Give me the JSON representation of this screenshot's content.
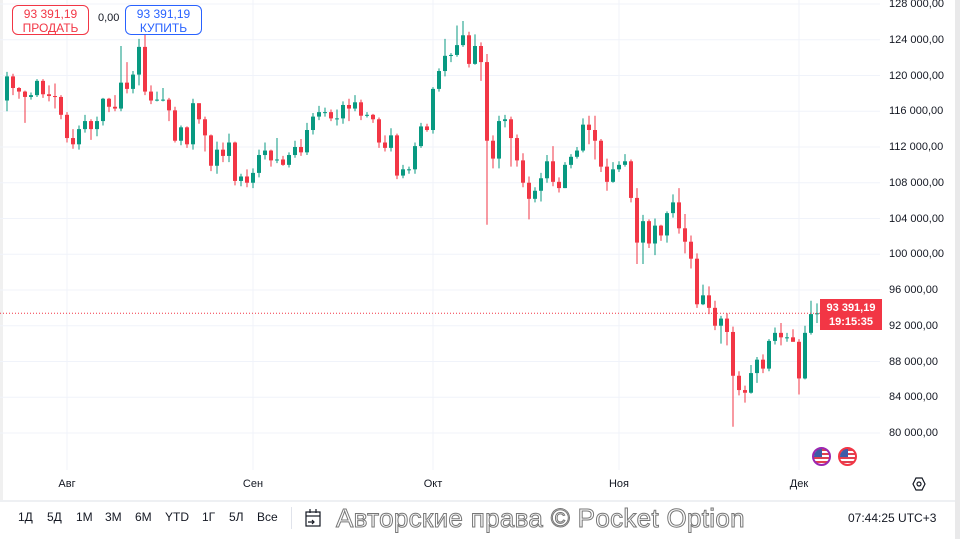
{
  "trade": {
    "sell_price": "93 391,19",
    "sell_label": "ПРОДАТЬ",
    "spread": "0,00",
    "buy_price": "93 391,19",
    "buy_label": "КУПИТЬ"
  },
  "current_price": {
    "value": "93 391,19",
    "countdown": "19:15:35",
    "color": "#f23645"
  },
  "range_buttons": [
    "1Д",
    "5Д",
    "1М",
    "3М",
    "6М",
    "YTD",
    "1Г",
    "5Л",
    "Все"
  ],
  "goto_date_icon": "calendar-arrow-icon",
  "settings_icon": "gear-icon",
  "event_icons": [
    "us-flag-icon",
    "us-flag-icon"
  ],
  "clock": "07:44:25 UTC+3",
  "watermark": "Авторские права © Pocket Option",
  "colors": {
    "up": "#089981",
    "down": "#f23645",
    "grid": "#f0f3fa"
  },
  "chart_data": {
    "type": "candlestick",
    "title": "",
    "x_tick_labels": [
      "Авг",
      "Сен",
      "Окт",
      "Ноя",
      "Дек"
    ],
    "y_tick_labels": [
      "128 000,00",
      "124 000,00",
      "120 000,00",
      "116 000,00",
      "112 000,00",
      "108 000,00",
      "104 000,00",
      "100 000,00",
      "96 000,00",
      "92 000,00",
      "88 000,00",
      "84 000,00",
      "80 000,00"
    ],
    "ylim": [
      80000,
      128000
    ],
    "y_axis": "right",
    "grid": true,
    "last_price": 93391.19,
    "candles_columns": [
      "date",
      "open",
      "high",
      "low",
      "close"
    ],
    "candles": [
      [
        "07-22",
        117200,
        120400,
        116000,
        119900
      ],
      [
        "07-23",
        119900,
        120200,
        117800,
        118600
      ],
      [
        "07-24",
        118600,
        118700,
        117400,
        118200
      ],
      [
        "07-25",
        118200,
        118300,
        114700,
        117600
      ],
      [
        "07-26",
        117600,
        118100,
        117300,
        117800
      ],
      [
        "07-27",
        117800,
        119600,
        117600,
        119400
      ],
      [
        "07-28",
        119400,
        119600,
        117500,
        117900
      ],
      [
        "07-29",
        117900,
        118900,
        117100,
        117700
      ],
      [
        "07-30",
        117700,
        119100,
        116300,
        117600
      ],
      [
        "07-31",
        117600,
        117800,
        115100,
        115600
      ],
      [
        "08-01",
        115600,
        115900,
        112500,
        113000
      ],
      [
        "08-02",
        113000,
        114000,
        111800,
        112300
      ],
      [
        "08-03",
        112300,
        114400,
        111700,
        114000
      ],
      [
        "08-04",
        114000,
        115600,
        113600,
        114900
      ],
      [
        "08-05",
        114900,
        115100,
        112800,
        114000
      ],
      [
        "08-06",
        114000,
        115400,
        113200,
        114900
      ],
      [
        "08-07",
        114900,
        117500,
        114400,
        117400
      ],
      [
        "08-08",
        117400,
        117500,
        115900,
        116500
      ],
      [
        "08-09",
        116500,
        117800,
        116000,
        116300
      ],
      [
        "08-10",
        116300,
        123300,
        116000,
        119200
      ],
      [
        "08-11",
        119200,
        121500,
        118000,
        118500
      ],
      [
        "08-12",
        118500,
        120500,
        118000,
        120100
      ],
      [
        "08-13",
        120100,
        124100,
        118900,
        123200
      ],
      [
        "08-14",
        123200,
        124700,
        117800,
        118200
      ],
      [
        "08-15",
        118200,
        118900,
        116800,
        117200
      ],
      [
        "08-16",
        117200,
        118200,
        117100,
        117300
      ],
      [
        "08-17",
        117300,
        118600,
        117100,
        117300
      ],
      [
        "08-18",
        117300,
        117500,
        114900,
        116100
      ],
      [
        "08-19",
        116100,
        116500,
        112500,
        112700
      ],
      [
        "08-20",
        112700,
        114400,
        112200,
        114200
      ],
      [
        "08-21",
        114200,
        114300,
        111900,
        112300
      ],
      [
        "08-22",
        112300,
        117400,
        111700,
        116900
      ],
      [
        "08-23",
        116900,
        116900,
        114600,
        115100
      ],
      [
        "08-24",
        115100,
        115400,
        111500,
        113300
      ],
      [
        "08-25",
        113300,
        113400,
        109300,
        109900
      ],
      [
        "08-26",
        109900,
        112600,
        109000,
        111700
      ],
      [
        "08-27",
        111700,
        112500,
        110300,
        111000
      ],
      [
        "08-28",
        111000,
        113500,
        110300,
        112500
      ],
      [
        "08-29",
        112500,
        112600,
        107700,
        108200
      ],
      [
        "08-30",
        108200,
        109000,
        107600,
        108700
      ],
      [
        "08-31",
        108700,
        109500,
        107500,
        108000
      ],
      [
        "09-01",
        108000,
        109600,
        107400,
        109100
      ],
      [
        "09-02",
        109100,
        111700,
        108600,
        111100
      ],
      [
        "09-03",
        111100,
        112500,
        110600,
        111600
      ],
      [
        "09-04",
        111600,
        111700,
        109800,
        110500
      ],
      [
        "09-05",
        110500,
        113000,
        110200,
        110600
      ],
      [
        "09-06",
        110600,
        111000,
        109900,
        110000
      ],
      [
        "09-07",
        110000,
        111400,
        109700,
        111100
      ],
      [
        "09-08",
        111100,
        112700,
        110800,
        112000
      ],
      [
        "09-09",
        112000,
        112900,
        111000,
        111400
      ],
      [
        "09-10",
        111400,
        114700,
        111100,
        113900
      ],
      [
        "09-11",
        113900,
        115800,
        113400,
        115400
      ],
      [
        "09-12",
        115400,
        116600,
        115000,
        115900
      ],
      [
        "09-13",
        115900,
        116400,
        115400,
        115900
      ],
      [
        "09-14",
        115900,
        116200,
        114900,
        115200
      ],
      [
        "09-15",
        115200,
        116200,
        114400,
        115200
      ],
      [
        "09-16",
        115200,
        117100,
        114600,
        116700
      ],
      [
        "09-17",
        116700,
        117400,
        114900,
        116300
      ],
      [
        "09-18",
        116300,
        117800,
        116000,
        117000
      ],
      [
        "09-19",
        117000,
        117300,
        115000,
        115500
      ],
      [
        "09-20",
        115500,
        115900,
        115300,
        115600
      ],
      [
        "09-21",
        115600,
        115700,
        114700,
        115100
      ],
      [
        "09-22",
        115100,
        115300,
        111900,
        112500
      ],
      [
        "09-23",
        112500,
        113300,
        111500,
        111900
      ],
      [
        "09-24",
        111900,
        114100,
        111500,
        113300
      ],
      [
        "09-25",
        113300,
        113500,
        108400,
        108800
      ],
      [
        "09-26",
        108800,
        110000,
        108500,
        109500
      ],
      [
        "09-27",
        109500,
        109800,
        109000,
        109500
      ],
      [
        "09-28",
        109500,
        112500,
        109000,
        112100
      ],
      [
        "09-29",
        112100,
        114700,
        111900,
        114300
      ],
      [
        "09-30",
        114300,
        114600,
        113700,
        113900
      ],
      [
        "10-01",
        113900,
        118700,
        113500,
        118500
      ],
      [
        "10-02",
        118500,
        120800,
        118200,
        120500
      ],
      [
        "10-03",
        120500,
        124100,
        119900,
        122200
      ],
      [
        "10-04",
        122200,
        122500,
        121500,
        122300
      ],
      [
        "10-05",
        122300,
        125600,
        122100,
        123400
      ],
      [
        "10-06",
        123400,
        126100,
        123200,
        124500
      ],
      [
        "10-07",
        124500,
        124900,
        120900,
        121300
      ],
      [
        "10-08",
        121300,
        124600,
        121200,
        123300
      ],
      [
        "10-09",
        123300,
        123700,
        119400,
        121500
      ],
      [
        "10-10",
        121500,
        122400,
        103300,
        112700
      ],
      [
        "10-11",
        112700,
        113300,
        109600,
        110700
      ],
      [
        "10-12",
        110700,
        115500,
        109600,
        114900
      ],
      [
        "10-13",
        114900,
        115600,
        114200,
        115100
      ],
      [
        "10-14",
        115100,
        115400,
        109800,
        113000
      ],
      [
        "10-15",
        113000,
        113400,
        109800,
        110500
      ],
      [
        "10-16",
        110500,
        111300,
        107500,
        108000
      ],
      [
        "10-17",
        108000,
        108700,
        103900,
        106200
      ],
      [
        "10-18",
        106200,
        107500,
        105800,
        107100
      ],
      [
        "10-19",
        107100,
        109100,
        105900,
        108500
      ],
      [
        "10-20",
        108500,
        111100,
        108000,
        110400
      ],
      [
        "10-21",
        110400,
        112100,
        107600,
        108100
      ],
      [
        "10-22",
        108100,
        108600,
        106900,
        107400
      ],
      [
        "10-23",
        107400,
        110300,
        107400,
        110000
      ],
      [
        "10-24",
        110000,
        111200,
        109600,
        110900
      ],
      [
        "10-25",
        110900,
        112000,
        110700,
        111600
      ],
      [
        "10-26",
        111600,
        115200,
        111400,
        114500
      ],
      [
        "10-27",
        114500,
        115500,
        112300,
        113900
      ],
      [
        "10-28",
        113900,
        115500,
        110600,
        112700
      ],
      [
        "10-29",
        112700,
        112900,
        109200,
        109800
      ],
      [
        "10-30",
        109800,
        110700,
        107100,
        108100
      ],
      [
        "10-31",
        108100,
        110300,
        108000,
        109500
      ],
      [
        "11-01",
        109500,
        110400,
        109200,
        110000
      ],
      [
        "11-02",
        110000,
        111200,
        109800,
        110400
      ],
      [
        "11-03",
        110400,
        110600,
        105800,
        106300
      ],
      [
        "11-04",
        106300,
        107400,
        98900,
        101300
      ],
      [
        "11-05",
        101300,
        104400,
        98900,
        103700
      ],
      [
        "11-06",
        103700,
        103900,
        100700,
        101200
      ],
      [
        "11-07",
        101200,
        104000,
        99900,
        103200
      ],
      [
        "11-08",
        103200,
        103300,
        101500,
        102100
      ],
      [
        "11-09",
        102100,
        104800,
        101300,
        104600
      ],
      [
        "11-10",
        104600,
        106700,
        104100,
        105800
      ],
      [
        "11-11",
        105800,
        107400,
        102300,
        102900
      ],
      [
        "11-12",
        102900,
        104500,
        100100,
        101400
      ],
      [
        "11-13",
        101400,
        102100,
        98400,
        99500
      ],
      [
        "11-14",
        99500,
        100100,
        94000,
        94400
      ],
      [
        "11-15",
        94400,
        96600,
        94300,
        95400
      ],
      [
        "11-16",
        95400,
        96400,
        93300,
        94000
      ],
      [
        "11-17",
        94000,
        94800,
        91500,
        92000
      ],
      [
        "11-18",
        92000,
        93100,
        90000,
        92800
      ],
      [
        "11-19",
        92800,
        93400,
        89800,
        91300
      ],
      [
        "11-20",
        91300,
        91900,
        80700,
        86400
      ],
      [
        "11-21",
        86400,
        86900,
        84200,
        84800
      ],
      [
        "11-22",
        84800,
        85300,
        83400,
        84500
      ],
      [
        "11-23",
        84500,
        87600,
        84400,
        86700
      ],
      [
        "11-24",
        86700,
        88500,
        85600,
        88200
      ],
      [
        "11-25",
        88200,
        88800,
        86700,
        87200
      ],
      [
        "11-26",
        87200,
        90500,
        86900,
        90300
      ],
      [
        "11-27",
        90300,
        91800,
        89900,
        91200
      ],
      [
        "11-28",
        91200,
        92300,
        89800,
        90700
      ],
      [
        "11-29",
        90700,
        91200,
        90200,
        90700
      ],
      [
        "11-30",
        90700,
        91600,
        90200,
        90200
      ],
      [
        "12-01",
        90200,
        90500,
        84300,
        86100
      ],
      [
        "12-02",
        86100,
        92000,
        86000,
        91200
      ],
      [
        "12-03",
        91200,
        94800,
        91000,
        93300
      ],
      [
        "12-04",
        93300,
        94500,
        92300,
        93391.19
      ]
    ]
  }
}
